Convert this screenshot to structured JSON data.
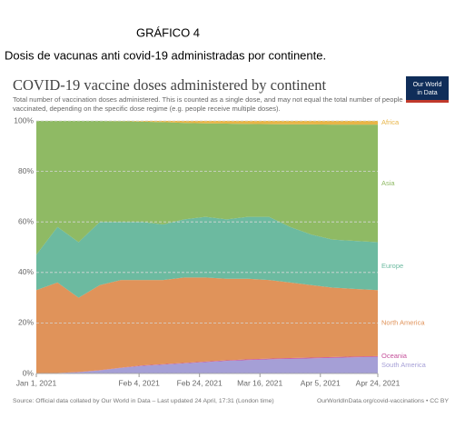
{
  "heading": "GRÁFICO 4",
  "caption": "Dosis de vacunas anti covid-19 administradas por continente.",
  "chart_data": {
    "type": "stacked-area",
    "title": "COVID-19 vaccine doses administered by continent",
    "subtitle": [
      "Total number of vaccination doses administered. This is counted as a single dose, and may not equal the total number of people",
      "vaccinated, depending on the specific dose regime (e.g. people receive multiple doses)."
    ],
    "logo": [
      "Our World",
      "in Data"
    ],
    "source": "Source: Official data collated by Our World in Data – Last updated 24 April, 17:31 (London time)",
    "license": "OurWorldInData.org/covid-vaccinations • CC BY",
    "x": [
      "2021-01-01",
      "2021-01-08",
      "2021-01-15",
      "2021-01-22",
      "2021-01-29",
      "2021-02-05",
      "2021-02-12",
      "2021-02-19",
      "2021-02-26",
      "2021-03-05",
      "2021-03-12",
      "2021-03-19",
      "2021-03-26",
      "2021-04-02",
      "2021-04-09",
      "2021-04-16",
      "2021-04-24"
    ],
    "xlim": [
      "2021-01-01",
      "2021-04-24"
    ],
    "xticks": [
      {
        "value": "2021-01-01",
        "label": "Jan 1, 2021"
      },
      {
        "value": "2021-02-04",
        "label": "Feb 4, 2021"
      },
      {
        "value": "2021-02-24",
        "label": "Feb 24, 2021"
      },
      {
        "value": "2021-03-16",
        "label": "Mar 16, 2021"
      },
      {
        "value": "2021-04-05",
        "label": "Apr 5, 2021"
      },
      {
        "value": "2021-04-24",
        "label": "Apr 24, 2021"
      }
    ],
    "ylim": [
      0,
      100
    ],
    "yticks": [
      {
        "value": 0,
        "label": "0%"
      },
      {
        "value": 20,
        "label": "20%"
      },
      {
        "value": 40,
        "label": "40%"
      },
      {
        "value": 60,
        "label": "60%"
      },
      {
        "value": 80,
        "label": "80%"
      },
      {
        "value": 100,
        "label": "100%"
      }
    ],
    "grid": true,
    "series": [
      {
        "name": "South America",
        "color": "#a59fd6",
        "values": [
          0,
          0.2,
          0.5,
          1.2,
          2.2,
          3,
          3.5,
          4,
          4.5,
          5,
          5.3,
          5.6,
          5.8,
          6,
          6.2,
          6.4,
          6.6
        ]
      },
      {
        "name": "Oceania",
        "color": "#c5519b",
        "values": [
          0,
          0,
          0.1,
          0.1,
          0.1,
          0.2,
          0.2,
          0.2,
          0.2,
          0.2,
          0.3,
          0.3,
          0.3,
          0.3,
          0.3,
          0.3,
          0.3
        ]
      },
      {
        "name": "North America",
        "color": "#e0935a",
        "values": [
          33,
          35.8,
          29.4,
          33.7,
          34.7,
          33.8,
          33.3,
          33.8,
          33.3,
          32.3,
          31.9,
          31.1,
          29.9,
          28.7,
          27.5,
          26.8,
          26.1
        ]
      },
      {
        "name": "Europe",
        "color": "#6cbaa0",
        "values": [
          14,
          22,
          22,
          25,
          23,
          23,
          22,
          23,
          24,
          23.5,
          24.5,
          25,
          22,
          20,
          19,
          19,
          19
        ]
      },
      {
        "name": "Asia",
        "color": "#8fba64",
        "values": [
          53,
          42,
          48,
          40,
          39.9,
          39.7,
          40.5,
          38.2,
          37,
          37.9,
          36.8,
          36.7,
          40.6,
          43.6,
          45.5,
          46,
          46.5
        ]
      },
      {
        "name": "Africa",
        "color": "#e8b548",
        "values": [
          0,
          0,
          0,
          0,
          0.1,
          0.3,
          0.5,
          0.8,
          1,
          1.1,
          1.2,
          1.3,
          1.4,
          1.4,
          1.5,
          1.5,
          1.5
        ]
      }
    ]
  }
}
